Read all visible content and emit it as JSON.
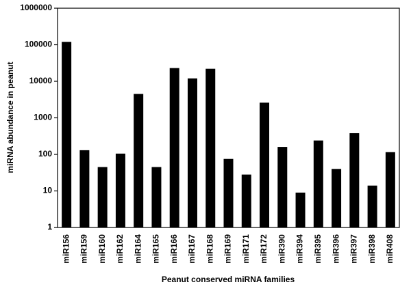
{
  "chart_data": {
    "type": "bar",
    "x_label": "Peanut conserved miRNA families",
    "y_label": "miRNA abundance in peanut",
    "categories": [
      "miR156",
      "miR159",
      "miR160",
      "miR162",
      "miR164",
      "miR165",
      "miR166",
      "miR167",
      "miR168",
      "miR169",
      "miR171",
      "miR172",
      "miR390",
      "miR394",
      "miR395",
      "miR396",
      "miR397",
      "miR398",
      "miR408"
    ],
    "values": [
      120000,
      130,
      45,
      105,
      4500,
      45,
      23000,
      12000,
      22000,
      75,
      28,
      2600,
      160,
      9,
      240,
      40,
      380,
      14,
      115
    ],
    "color": "#000000",
    "log_scale": true,
    "grid": false,
    "ylim": [
      1,
      1000000
    ],
    "yticks": [
      1,
      10,
      100,
      1000,
      10000,
      100000,
      1000000
    ]
  }
}
